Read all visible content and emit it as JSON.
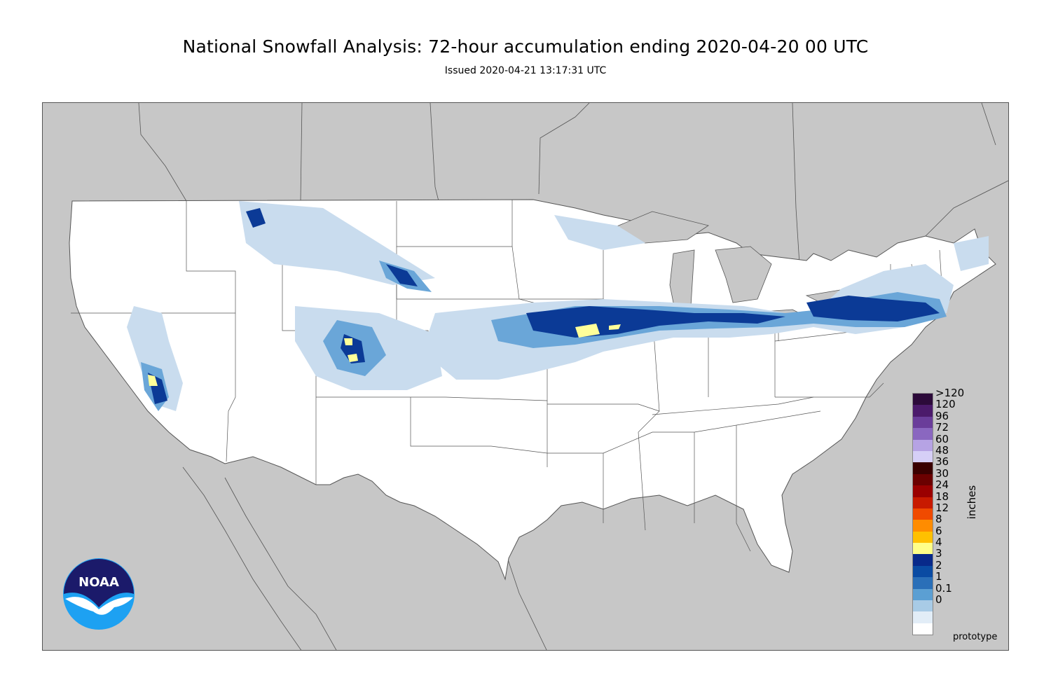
{
  "header": {
    "title": "National Snowfall Analysis: 72-hour accumulation ending 2020-04-20 00 UTC",
    "subtitle": "Issued 2020-04-21 13:17:31 UTC"
  },
  "map": {
    "land_color": "#ffffff",
    "outside_color": "#c7c7c7",
    "boundary_color": "#555555"
  },
  "legend": {
    "units": "inches",
    "levels": [
      {
        "label": ">120",
        "color": "#2c0a3a"
      },
      {
        "label": "120",
        "color": "#4b1a6b"
      },
      {
        "label": "96",
        "color": "#6a3d9a"
      },
      {
        "label": "72",
        "color": "#8a67c0"
      },
      {
        "label": "60",
        "color": "#b6a3e4"
      },
      {
        "label": "48",
        "color": "#d6cff7"
      },
      {
        "label": "36",
        "color": "#3a0000"
      },
      {
        "label": "30",
        "color": "#6b0000"
      },
      {
        "label": "24",
        "color": "#9a0000"
      },
      {
        "label": "18",
        "color": "#c81a00"
      },
      {
        "label": "12",
        "color": "#f04a00"
      },
      {
        "label": "8",
        "color": "#ff8c00"
      },
      {
        "label": "6",
        "color": "#ffc000"
      },
      {
        "label": "4",
        "color": "#ffff88"
      },
      {
        "label": "3",
        "color": "#08298a"
      },
      {
        "label": "2",
        "color": "#0a4ba3"
      },
      {
        "label": "1",
        "color": "#2a6fb8"
      },
      {
        "label": "0.1",
        "color": "#5b9fd3"
      },
      {
        "label": "0",
        "color": "#a8cbe6"
      }
    ],
    "extra_swatches": [
      "#e2edf7",
      "#ffffff"
    ]
  },
  "footer": {
    "note": "prototype",
    "logo_text": "NOAA"
  }
}
